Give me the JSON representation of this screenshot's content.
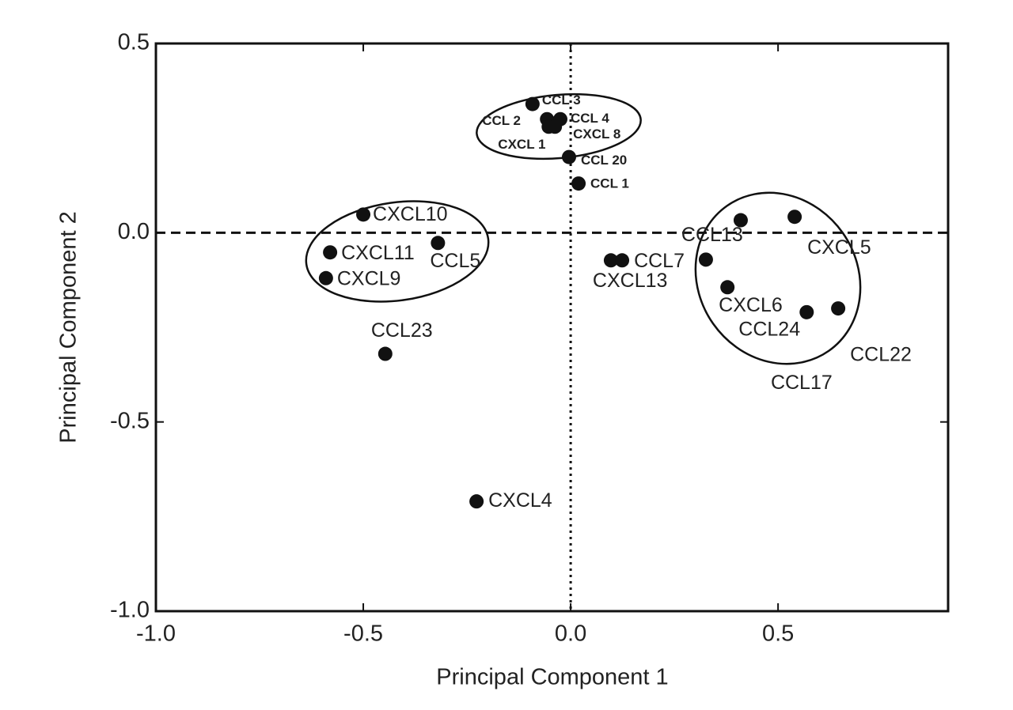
{
  "chart_data": {
    "type": "scatter",
    "x_label": "Principal Component 1",
    "y_label": "Principal Component 2",
    "xlim": [
      -1.0,
      0.91
    ],
    "ylim": [
      -1.0,
      0.5
    ],
    "xticks": [
      {
        "value": -1.0,
        "label": "-1.0"
      },
      {
        "value": -0.5,
        "label": "-0.5"
      },
      {
        "value": 0.0,
        "label": "0.0"
      },
      0.5
    ],
    "yticks": [
      {
        "value": -1.0,
        "label": "-1.0"
      },
      {
        "value": -0.5,
        "label": "-0.5"
      },
      {
        "value": 0.0,
        "label": "0.0"
      },
      0.5
    ],
    "point_labels": [
      "CCL 3",
      "CCL 2",
      "CCL 4",
      "CXCL 1",
      "CXCL 8",
      "CCL 20",
      "CCL 1",
      "CXCL10",
      "CCL5",
      "CXCL11",
      "CXCL9",
      "CCL23",
      "CXCL4",
      "CXCL13",
      "CCL7",
      "CCL13",
      "CCL17",
      "CXCL5",
      "CXCL6",
      "CCL24",
      "CCL22"
    ],
    "x": [
      -0.092,
      -0.057,
      -0.025,
      -0.053,
      -0.038,
      -0.004,
      0.019,
      -0.5,
      -0.32,
      -0.58,
      -0.59,
      -0.447,
      -0.227,
      0.097,
      0.124,
      0.326,
      0.41,
      0.54,
      0.378,
      0.569,
      0.645
    ],
    "series": [
      {
        "color": "#111111",
        "values": [
          0.34,
          0.3,
          0.3,
          0.28,
          0.28,
          0.2,
          0.13,
          0.048,
          -0.027,
          -0.052,
          -0.12,
          -0.32,
          -0.71,
          -0.073,
          -0.073,
          -0.071,
          0.033,
          0.042,
          -0.144,
          -0.21,
          -0.2
        ]
      }
    ]
  }
}
